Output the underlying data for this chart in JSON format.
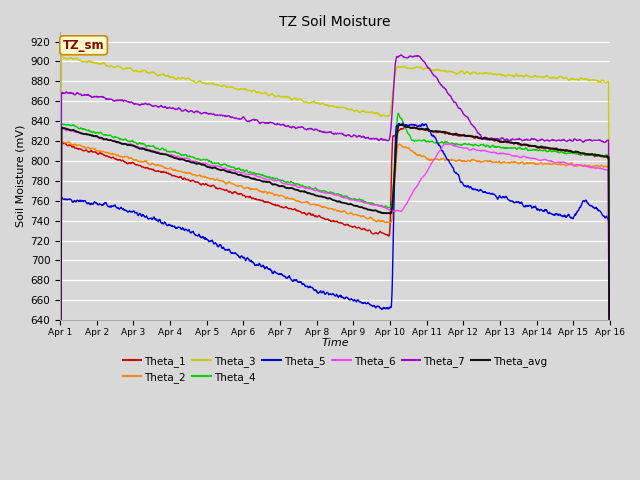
{
  "title": "TZ Soil Moisture",
  "xlabel": "Time",
  "ylabel": "Soil Moisture (mV)",
  "ylim": [
    640,
    930
  ],
  "yticks": [
    640,
    660,
    680,
    700,
    720,
    740,
    760,
    780,
    800,
    820,
    840,
    860,
    880,
    900,
    920
  ],
  "xtick_labels": [
    "Apr 1",
    "Apr 2",
    "Apr 3",
    "Apr 4",
    "Apr 5",
    "Apr 6",
    "Apr 7",
    "Apr 8",
    "Apr 9",
    "Apr 10",
    "Apr 11",
    "Apr 12",
    "Apr 13",
    "Apr 14",
    "Apr 15",
    "Apr 16"
  ],
  "series_colors": {
    "Theta_1": "#cc0000",
    "Theta_2": "#ff8800",
    "Theta_3": "#cccc00",
    "Theta_4": "#00cc00",
    "Theta_5": "#0000dd",
    "Theta_6": "#ff44ff",
    "Theta_7": "#9900cc",
    "Theta_avg": "#111111"
  },
  "bg_color": "#d8d8d8",
  "legend_label": "TZ_sm",
  "legend_box_face": "#ffffcc",
  "legend_box_edge": "#cc8800"
}
